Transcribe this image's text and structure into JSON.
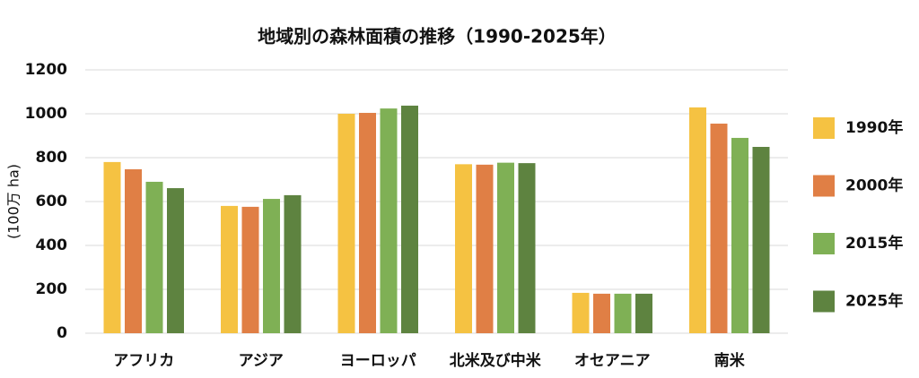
{
  "chart_data": {
    "type": "bar",
    "title": "地域別の森林面積の推移（1990-2025年）",
    "y_label": "(100万 ha)",
    "categories": [
      "アフリカ",
      "アジア",
      "ヨーロッパ",
      "北米及び中米",
      "オセアニア",
      "南米"
    ],
    "series": [
      {
        "name": "1990年",
        "color": "#f5c242",
        "values": [
          780,
          580,
          1000,
          770,
          184,
          1029
        ]
      },
      {
        "name": "2000年",
        "color": "#e07f45",
        "values": [
          747,
          576,
          1004,
          768,
          180,
          955
        ]
      },
      {
        "name": "2015年",
        "color": "#7fb055",
        "values": [
          690,
          612,
          1024,
          777,
          180,
          890
        ]
      },
      {
        "name": "2025年",
        "color": "#5e8340",
        "values": [
          661,
          629,
          1037,
          775,
          180,
          849
        ]
      }
    ],
    "ylim": [
      0,
      1200
    ],
    "yticks": [
      0,
      200,
      400,
      600,
      800,
      1000,
      1200
    ],
    "grid": true,
    "legend": "right"
  }
}
